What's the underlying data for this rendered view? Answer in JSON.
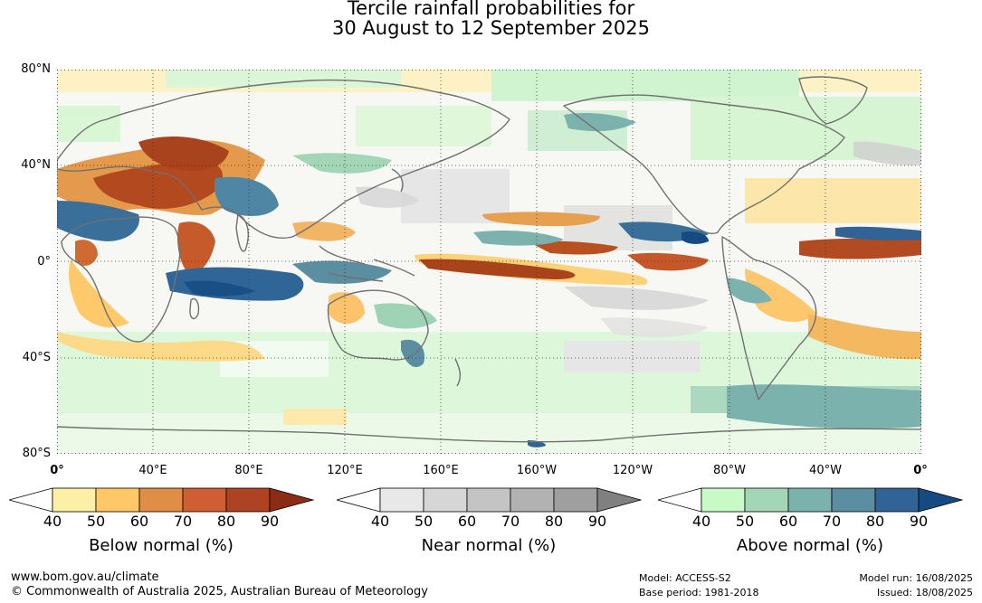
{
  "title": {
    "line1": "Tercile rainfall probabilities for",
    "line2": "30 August to 12 September 2025"
  },
  "map": {
    "lat_labels": [
      "80°N",
      "40°N",
      "0°",
      "40°S",
      "80°S"
    ],
    "lon_labels": [
      "0°",
      "40°E",
      "80°E",
      "120°E",
      "160°E",
      "160°W",
      "120°W",
      "80°W",
      "40°W",
      "0°"
    ]
  },
  "legends": [
    {
      "title": "Below normal (%)",
      "ticks": [
        "40",
        "50",
        "60",
        "70",
        "80",
        "90"
      ],
      "colors": [
        "#ffffff",
        "#fcefa6",
        "#fec866",
        "#e08e45",
        "#cf5f32",
        "#ad4323",
        "#8c2c14"
      ]
    },
    {
      "title": "Near normal (%)",
      "ticks": [
        "40",
        "50",
        "60",
        "70",
        "80",
        "90"
      ],
      "colors": [
        "#ffffff",
        "#e8e8e8",
        "#d6d6d6",
        "#c4c4c4",
        "#b2b2b2",
        "#9f9f9f",
        "#808080"
      ]
    },
    {
      "title": "Above normal (%)",
      "ticks": [
        "40",
        "50",
        "60",
        "70",
        "80",
        "90"
      ],
      "colors": [
        "#ffffff",
        "#c8fac8",
        "#a3d6b6",
        "#7cb2ae",
        "#5b8ea0",
        "#326396",
        "#164b82"
      ]
    }
  ],
  "footer": {
    "url": "www.bom.gov.au/climate",
    "copyright": "© Commonwealth of Australia 2025, Australian Bureau of Meteorology",
    "model": "Model: ACCESS-S2",
    "base_period": "Base period: 1981-2018",
    "model_run": "Model run: 16/08/2025",
    "issued": "Issued: 18/08/2025"
  }
}
